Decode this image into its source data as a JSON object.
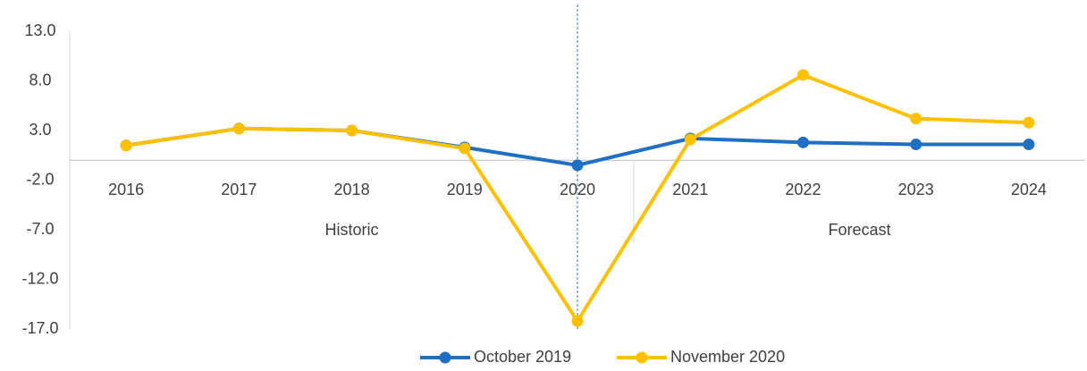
{
  "chart_data": {
    "type": "line",
    "categories": [
      "2016",
      "2017",
      "2018",
      "2019",
      "2020",
      "2021",
      "2022",
      "2023",
      "2024"
    ],
    "groups": [
      {
        "name": "Historic",
        "span": 5
      },
      {
        "name": "Forecast",
        "span": 4
      }
    ],
    "series": [
      {
        "name": "October 2019",
        "color": "#1f6fc5",
        "values": [
          1.5,
          3.2,
          3.0,
          1.3,
          -0.5,
          2.2,
          1.8,
          1.6,
          1.6
        ]
      },
      {
        "name": "November 2020",
        "color": "#ffc000",
        "values": [
          1.5,
          3.2,
          3.0,
          1.2,
          -16.2,
          2.1,
          8.6,
          4.2,
          3.8
        ]
      }
    ],
    "ylim": [
      -17,
      13
    ],
    "yticks": [
      {
        "value": -17,
        "label": "-17.0"
      },
      {
        "value": -12,
        "label": "-12.0"
      },
      {
        "value": -7,
        "label": "-7.0"
      },
      {
        "value": -2,
        "label": "-2.0"
      },
      {
        "value": 3,
        "label": "3.0"
      },
      {
        "value": 8,
        "label": "8.0"
      },
      {
        "value": 13,
        "label": "13.0"
      }
    ],
    "legend": "bottom"
  }
}
